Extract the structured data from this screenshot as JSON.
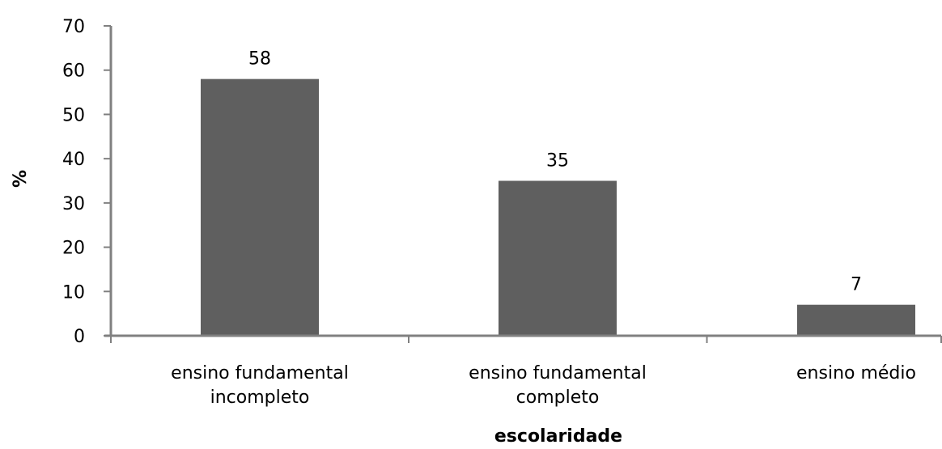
{
  "chart_data": {
    "type": "bar",
    "categories": [
      [
        "ensino fundamental",
        "incompleto"
      ],
      [
        "ensino fundamental",
        "completo"
      ],
      [
        "ensino médio"
      ]
    ],
    "values": [
      58,
      35,
      7
    ],
    "data_labels": [
      "58",
      "35",
      "7"
    ],
    "title": "",
    "xlabel": "escolaridade",
    "ylabel": "%",
    "ylim": [
      0,
      70
    ],
    "yticks": [
      0,
      10,
      20,
      30,
      40,
      50,
      60,
      70
    ],
    "grid": false,
    "legend": "none",
    "colors": {
      "bar": "#5f5f5f",
      "axis": "#808080",
      "text": "#000000"
    }
  }
}
